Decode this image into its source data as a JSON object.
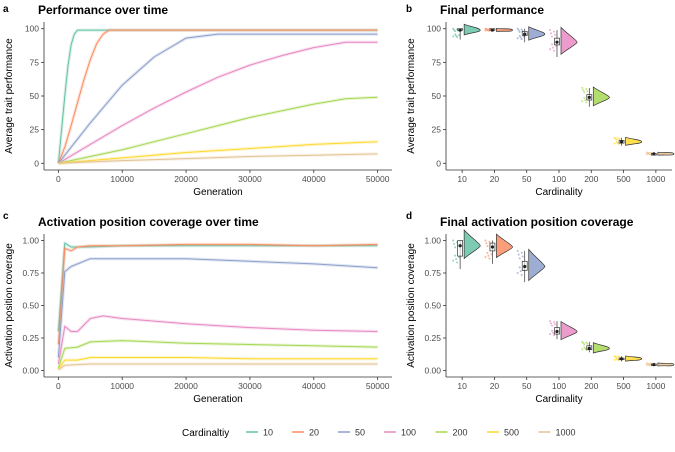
{
  "legend": {
    "title": "Cardinaltiy",
    "items": [
      {
        "label": "10",
        "color": "#66c2a5"
      },
      {
        "label": "20",
        "color": "#fc8d62"
      },
      {
        "label": "50",
        "color": "#8da0cb"
      },
      {
        "label": "100",
        "color": "#e78ac3"
      },
      {
        "label": "200",
        "color": "#a6d854"
      },
      {
        "label": "500",
        "color": "#ffd92f"
      },
      {
        "label": "1000",
        "color": "#e5c494"
      }
    ]
  },
  "chart_data": [
    {
      "panel": "a",
      "type": "line",
      "title": "Performance over time",
      "xlabel": "Generation",
      "ylabel": "Average trait performance",
      "xlim": [
        0,
        50000
      ],
      "ylim": [
        0,
        100
      ],
      "xticks": [
        0,
        10000,
        20000,
        30000,
        40000,
        50000
      ],
      "yticks": [
        0,
        25,
        50,
        75,
        100
      ],
      "grid": false,
      "series": [
        {
          "name": "10",
          "x": [
            0,
            500,
            1000,
            1500,
            2000,
            2500,
            3000,
            50000
          ],
          "y": [
            0,
            25,
            50,
            72,
            88,
            96,
            99,
            99
          ]
        },
        {
          "name": "20",
          "x": [
            0,
            1000,
            2000,
            3000,
            4000,
            5000,
            6000,
            7000,
            8000,
            50000
          ],
          "y": [
            0,
            12,
            28,
            45,
            62,
            77,
            89,
            96,
            99,
            99
          ]
        },
        {
          "name": "50",
          "x": [
            0,
            5000,
            10000,
            15000,
            20000,
            25000,
            30000,
            40000,
            50000
          ],
          "y": [
            0,
            30,
            58,
            79,
            93,
            96,
            96,
            96,
            96
          ]
        },
        {
          "name": "100",
          "x": [
            0,
            5000,
            10000,
            15000,
            20000,
            25000,
            30000,
            35000,
            40000,
            45000,
            50000
          ],
          "y": [
            0,
            14,
            28,
            41,
            53,
            64,
            73,
            80,
            86,
            90,
            90
          ]
        },
        {
          "name": "200",
          "x": [
            0,
            5000,
            10000,
            15000,
            20000,
            25000,
            30000,
            35000,
            40000,
            45000,
            50000
          ],
          "y": [
            0,
            5,
            10,
            16,
            22,
            28,
            34,
            39,
            44,
            48,
            49
          ]
        },
        {
          "name": "500",
          "x": [
            0,
            10000,
            20000,
            30000,
            40000,
            50000
          ],
          "y": [
            0,
            4,
            8,
            11,
            14,
            16
          ]
        },
        {
          "name": "1000",
          "x": [
            0,
            10000,
            20000,
            30000,
            40000,
            50000
          ],
          "y": [
            0,
            2,
            3.5,
            5,
            6,
            7
          ]
        }
      ]
    },
    {
      "panel": "b",
      "type": "violin",
      "title": "Final performance",
      "xlabel": "Cardinality",
      "ylabel": "Average trait performance",
      "categories": [
        "10",
        "20",
        "50",
        "100",
        "200",
        "500",
        "1000"
      ],
      "medians": [
        99,
        99,
        96,
        90,
        49,
        16,
        7
      ],
      "q1": [
        99,
        99,
        95,
        88,
        47,
        15,
        6.8
      ],
      "q3": [
        100,
        100,
        98,
        93,
        51,
        17,
        7.2
      ],
      "mins": [
        92,
        98,
        90,
        79,
        42,
        13,
        6
      ],
      "maxs": [
        100,
        100,
        100,
        99,
        56,
        19,
        8
      ],
      "ylim": [
        0,
        100
      ],
      "yticks": [
        0,
        25,
        50,
        75,
        100
      ],
      "grid": false
    },
    {
      "panel": "c",
      "type": "line",
      "title": "Activation position coverage over time",
      "xlabel": "Generation",
      "ylabel": "Activation position coverage",
      "xlim": [
        0,
        50000
      ],
      "ylim": [
        0,
        1
      ],
      "xticks": [
        0,
        10000,
        20000,
        30000,
        40000,
        50000
      ],
      "yticks": [
        0,
        0.25,
        0.5,
        0.75,
        1
      ],
      "ytick_labels": [
        "0.00",
        "0.25",
        "0.50",
        "0.75",
        "1.00"
      ],
      "grid": false,
      "series": [
        {
          "name": "10",
          "x": [
            0,
            1000,
            2000,
            5000,
            10000,
            20000,
            30000,
            40000,
            50000
          ],
          "y": [
            0.3,
            0.98,
            0.95,
            0.95,
            0.96,
            0.96,
            0.96,
            0.96,
            0.96
          ]
        },
        {
          "name": "20",
          "x": [
            0,
            1000,
            2000,
            3000,
            5000,
            10000,
            20000,
            30000,
            40000,
            50000
          ],
          "y": [
            0.2,
            0.94,
            0.92,
            0.95,
            0.96,
            0.96,
            0.97,
            0.97,
            0.96,
            0.97
          ]
        },
        {
          "name": "50",
          "x": [
            0,
            1000,
            2000,
            5000,
            10000,
            20000,
            30000,
            40000,
            50000
          ],
          "y": [
            0.1,
            0.76,
            0.8,
            0.86,
            0.86,
            0.86,
            0.84,
            0.82,
            0.79
          ]
        },
        {
          "name": "100",
          "x": [
            0,
            1000,
            2000,
            3000,
            5000,
            7000,
            10000,
            20000,
            30000,
            40000,
            50000
          ],
          "y": [
            0.05,
            0.34,
            0.3,
            0.3,
            0.4,
            0.42,
            0.4,
            0.36,
            0.33,
            0.31,
            0.3
          ]
        },
        {
          "name": "200",
          "x": [
            0,
            1000,
            3000,
            5000,
            10000,
            20000,
            30000,
            40000,
            50000
          ],
          "y": [
            0.02,
            0.17,
            0.18,
            0.22,
            0.23,
            0.21,
            0.2,
            0.19,
            0.18
          ]
        },
        {
          "name": "500",
          "x": [
            0,
            1000,
            3000,
            5000,
            10000,
            20000,
            30000,
            40000,
            50000
          ],
          "y": [
            0.01,
            0.08,
            0.08,
            0.1,
            0.1,
            0.1,
            0.09,
            0.09,
            0.09
          ]
        },
        {
          "name": "1000",
          "x": [
            0,
            1000,
            3000,
            5000,
            10000,
            20000,
            30000,
            40000,
            50000
          ],
          "y": [
            0.005,
            0.04,
            0.045,
            0.05,
            0.05,
            0.05,
            0.05,
            0.05,
            0.05
          ]
        }
      ]
    },
    {
      "panel": "d",
      "type": "violin",
      "title": "Final activation position coverage",
      "xlabel": "Cardinality",
      "ylabel": "Activation position coverage",
      "categories": [
        "10",
        "20",
        "50",
        "100",
        "200",
        "500",
        "1000"
      ],
      "medians": [
        0.96,
        0.95,
        0.8,
        0.3,
        0.17,
        0.09,
        0.045
      ],
      "q1": [
        0.88,
        0.92,
        0.77,
        0.28,
        0.16,
        0.085,
        0.04
      ],
      "q3": [
        1.0,
        0.98,
        0.84,
        0.33,
        0.19,
        0.095,
        0.05
      ],
      "mins": [
        0.78,
        0.82,
        0.68,
        0.24,
        0.14,
        0.07,
        0.035
      ],
      "maxs": [
        1.0,
        1.0,
        0.92,
        0.38,
        0.22,
        0.11,
        0.055
      ],
      "ylim": [
        0,
        1
      ],
      "yticks": [
        0,
        0.25,
        0.5,
        0.75,
        1
      ],
      "ytick_labels": [
        "0.00",
        "0.25",
        "0.50",
        "0.75",
        "1.00"
      ],
      "grid": false
    }
  ]
}
